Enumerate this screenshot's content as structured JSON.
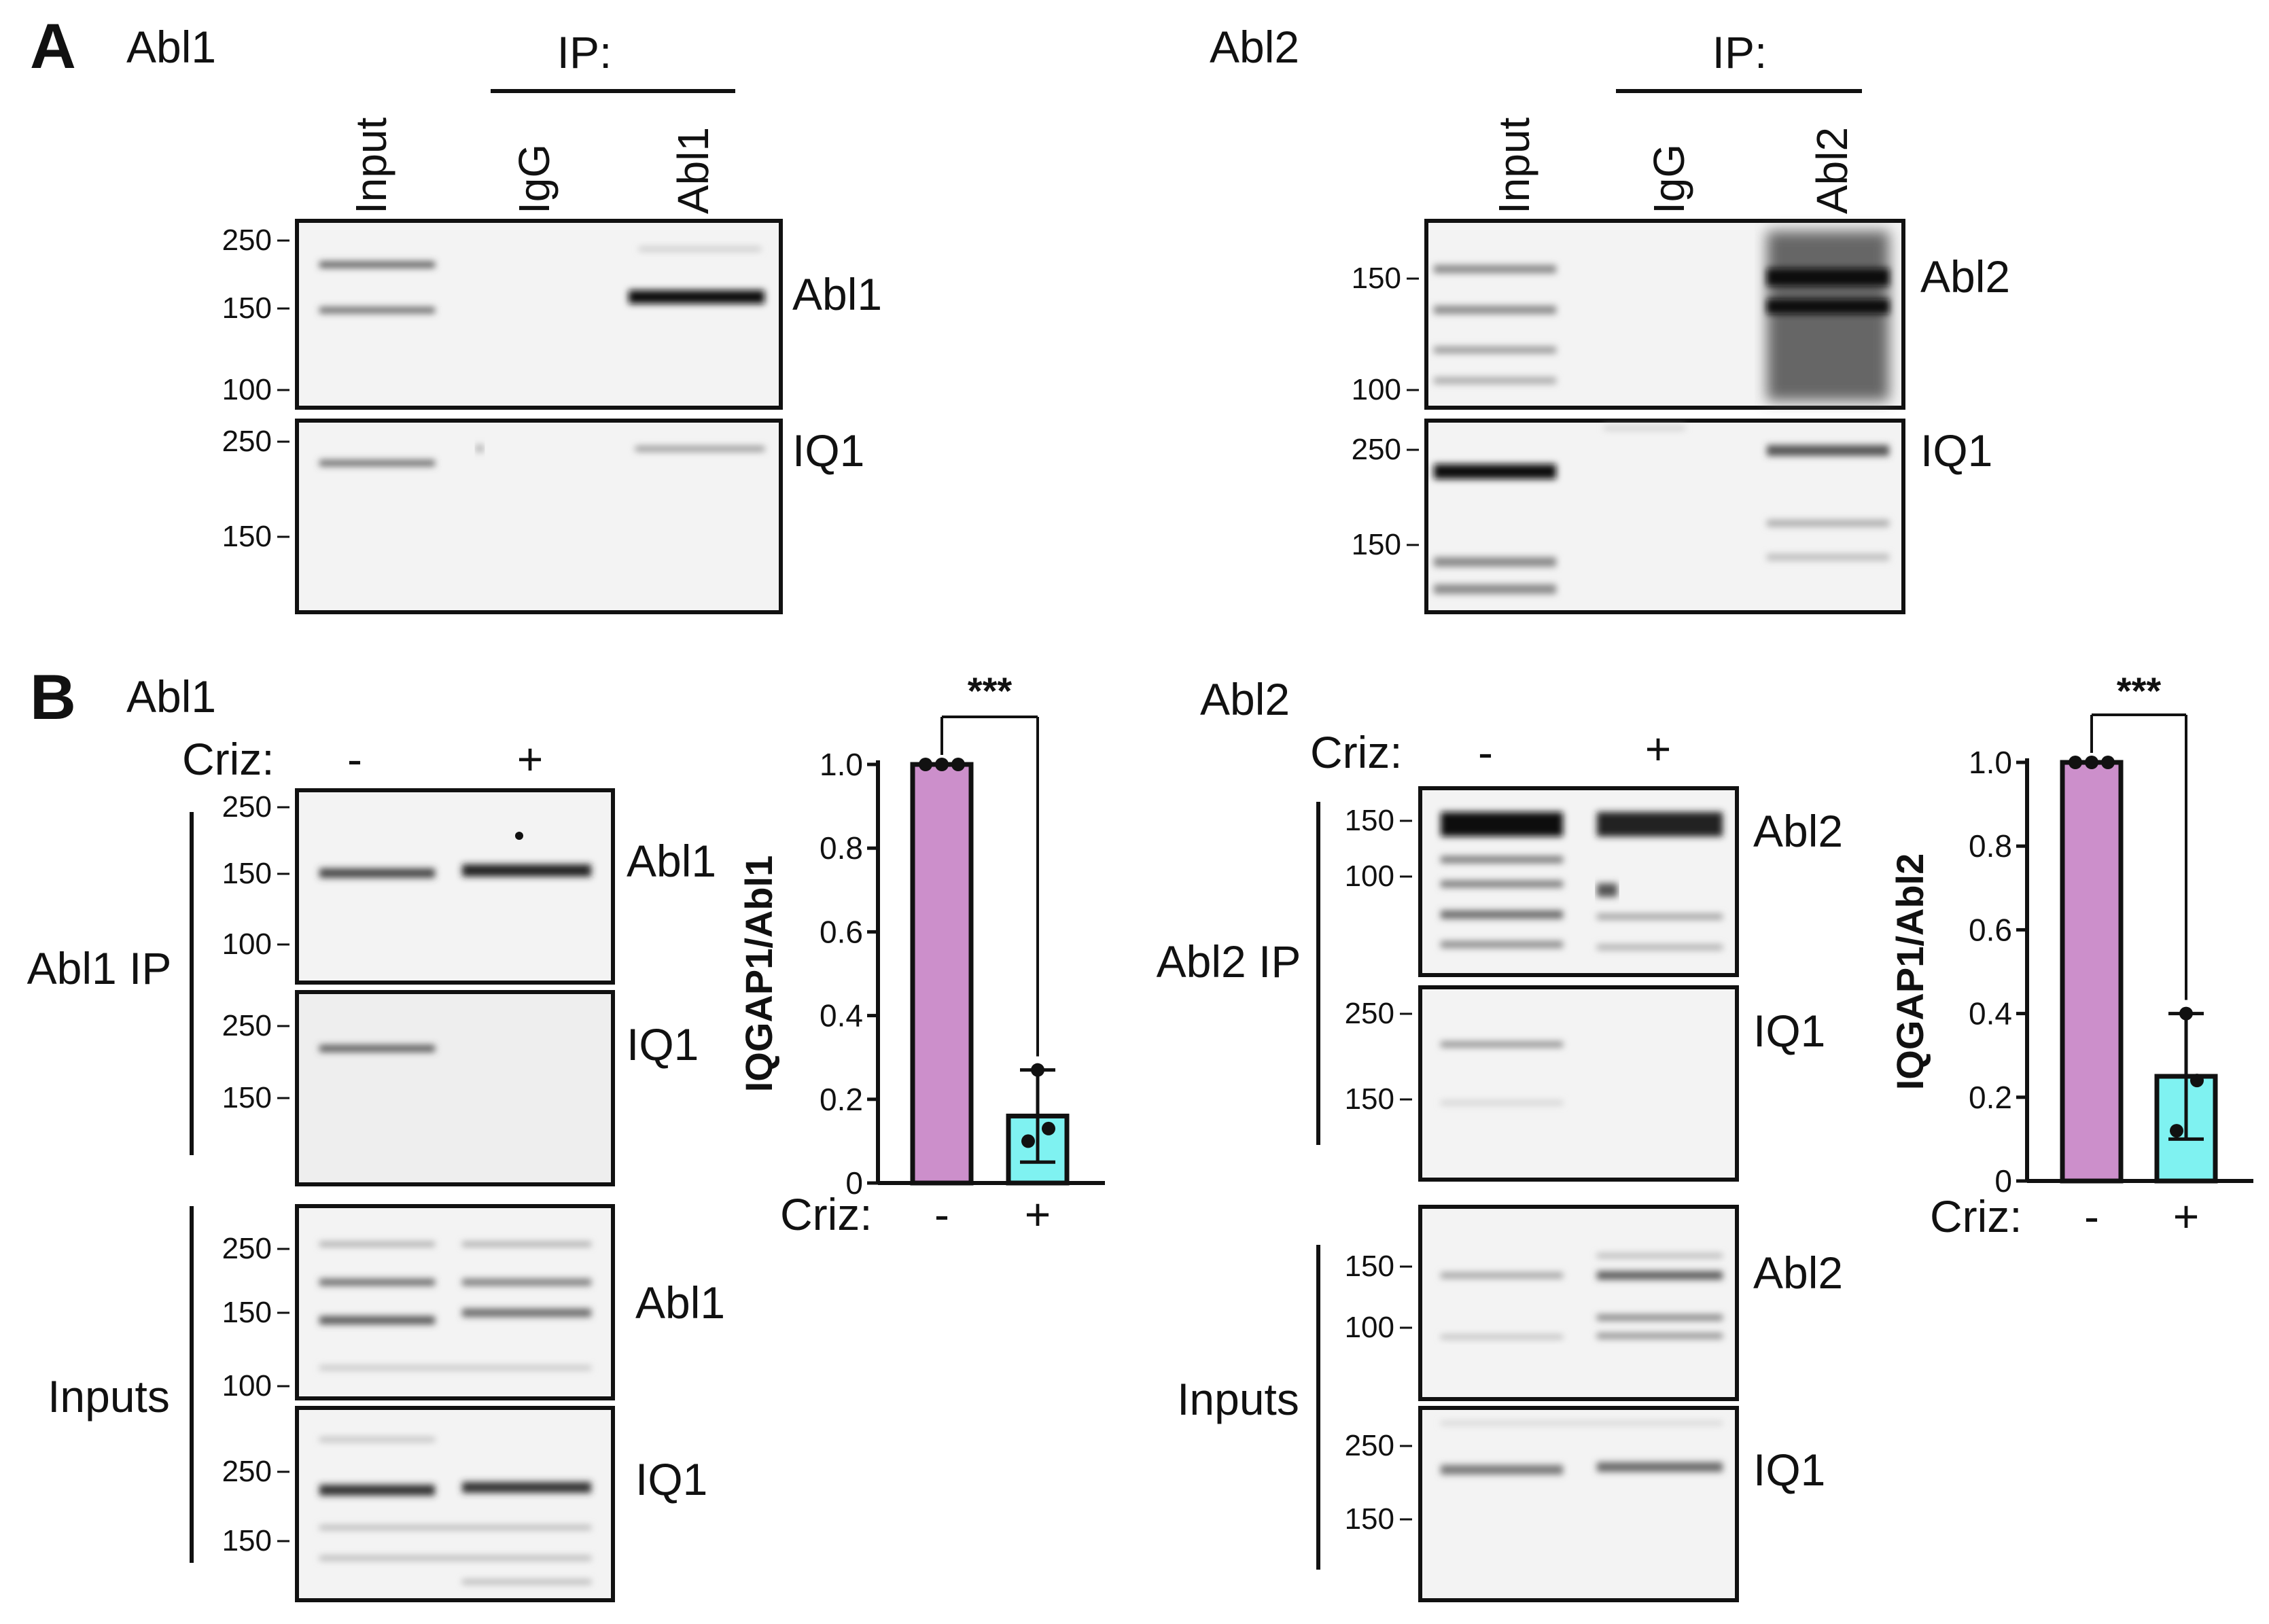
{
  "figure": {
    "panel_a": {
      "letter": "A",
      "left": {
        "title": "Abl1",
        "ip_label": "IP:",
        "lanes": [
          "Input",
          "IgG",
          "Abl1"
        ],
        "blot_top": {
          "markers": [
            "250",
            "150",
            "100"
          ],
          "band_label": "Abl1"
        },
        "blot_bottom": {
          "markers": [
            "250",
            "150"
          ],
          "band_label": "IQ1"
        }
      },
      "right": {
        "title": "Abl2",
        "ip_label": "IP:",
        "lanes": [
          "Input",
          "IgG",
          "Abl2"
        ],
        "blot_top": {
          "markers": [
            "150",
            "100"
          ],
          "band_label": "Abl2"
        },
        "blot_bottom": {
          "markers": [
            "250",
            "150"
          ],
          "band_label": "IQ1"
        }
      }
    },
    "panel_b": {
      "letter": "B",
      "left": {
        "title": "Abl1",
        "criz_label": "Criz:",
        "criz_minus": "-",
        "criz_plus": "+",
        "ip_group": "Abl1 IP",
        "inputs_group": "Inputs",
        "blot_ip_top": {
          "markers": [
            "250",
            "150",
            "100"
          ],
          "band_label": "Abl1"
        },
        "blot_ip_bottom": {
          "markers": [
            "250",
            "150"
          ],
          "band_label": "IQ1"
        },
        "blot_in_top": {
          "markers": [
            "250",
            "150",
            "100"
          ],
          "band_label": "Abl1"
        },
        "blot_in_bottom": {
          "markers": [
            "250",
            "150"
          ],
          "band_label": "IQ1"
        }
      },
      "right": {
        "title": "Abl2",
        "criz_label": "Criz:",
        "criz_minus": "-",
        "criz_plus": "+",
        "ip_group": "Abl2 IP",
        "inputs_group": "Inputs",
        "blot_ip_top": {
          "markers": [
            "150",
            "100"
          ],
          "band_label": "Abl2"
        },
        "blot_ip_bottom": {
          "markers": [
            "250",
            "150"
          ],
          "band_label": "IQ1"
        },
        "blot_in_top": {
          "markers": [
            "150",
            "100"
          ],
          "band_label": "Abl2"
        },
        "blot_in_bottom": {
          "markers": [
            "250",
            "150"
          ],
          "band_label": "IQ1"
        }
      }
    }
  },
  "colors": {
    "minus_bar": "#cc8fcb",
    "plus_bar": "#7ff2f1",
    "ink": "#111111"
  },
  "chart_data": [
    {
      "type": "bar",
      "title": "",
      "ylabel": "IQGAP1/Abl1",
      "xlabel": "Criz:",
      "categories": [
        "-",
        "+"
      ],
      "values": [
        1.0,
        0.16
      ],
      "error": [
        0.0,
        0.11
      ],
      "points": [
        [
          1.0,
          1.0,
          1.0
        ],
        [
          0.27,
          0.13,
          0.1
        ]
      ],
      "ylim": [
        0,
        1.0
      ],
      "yticks": [
        "0",
        "0.2",
        "0.4",
        "0.6",
        "0.8",
        "1.0"
      ],
      "significance": "***"
    },
    {
      "type": "bar",
      "title": "",
      "ylabel": "IQGAP1/Abl2",
      "xlabel": "Criz:",
      "categories": [
        "-",
        "+"
      ],
      "values": [
        1.0,
        0.25
      ],
      "error": [
        0.0,
        0.15
      ],
      "points": [
        [
          1.0,
          1.0,
          1.0
        ],
        [
          0.4,
          0.24,
          0.12
        ]
      ],
      "ylim": [
        0,
        1.0
      ],
      "yticks": [
        "0",
        "0.2",
        "0.4",
        "0.6",
        "0.8",
        "1.0"
      ],
      "significance": "***"
    }
  ]
}
